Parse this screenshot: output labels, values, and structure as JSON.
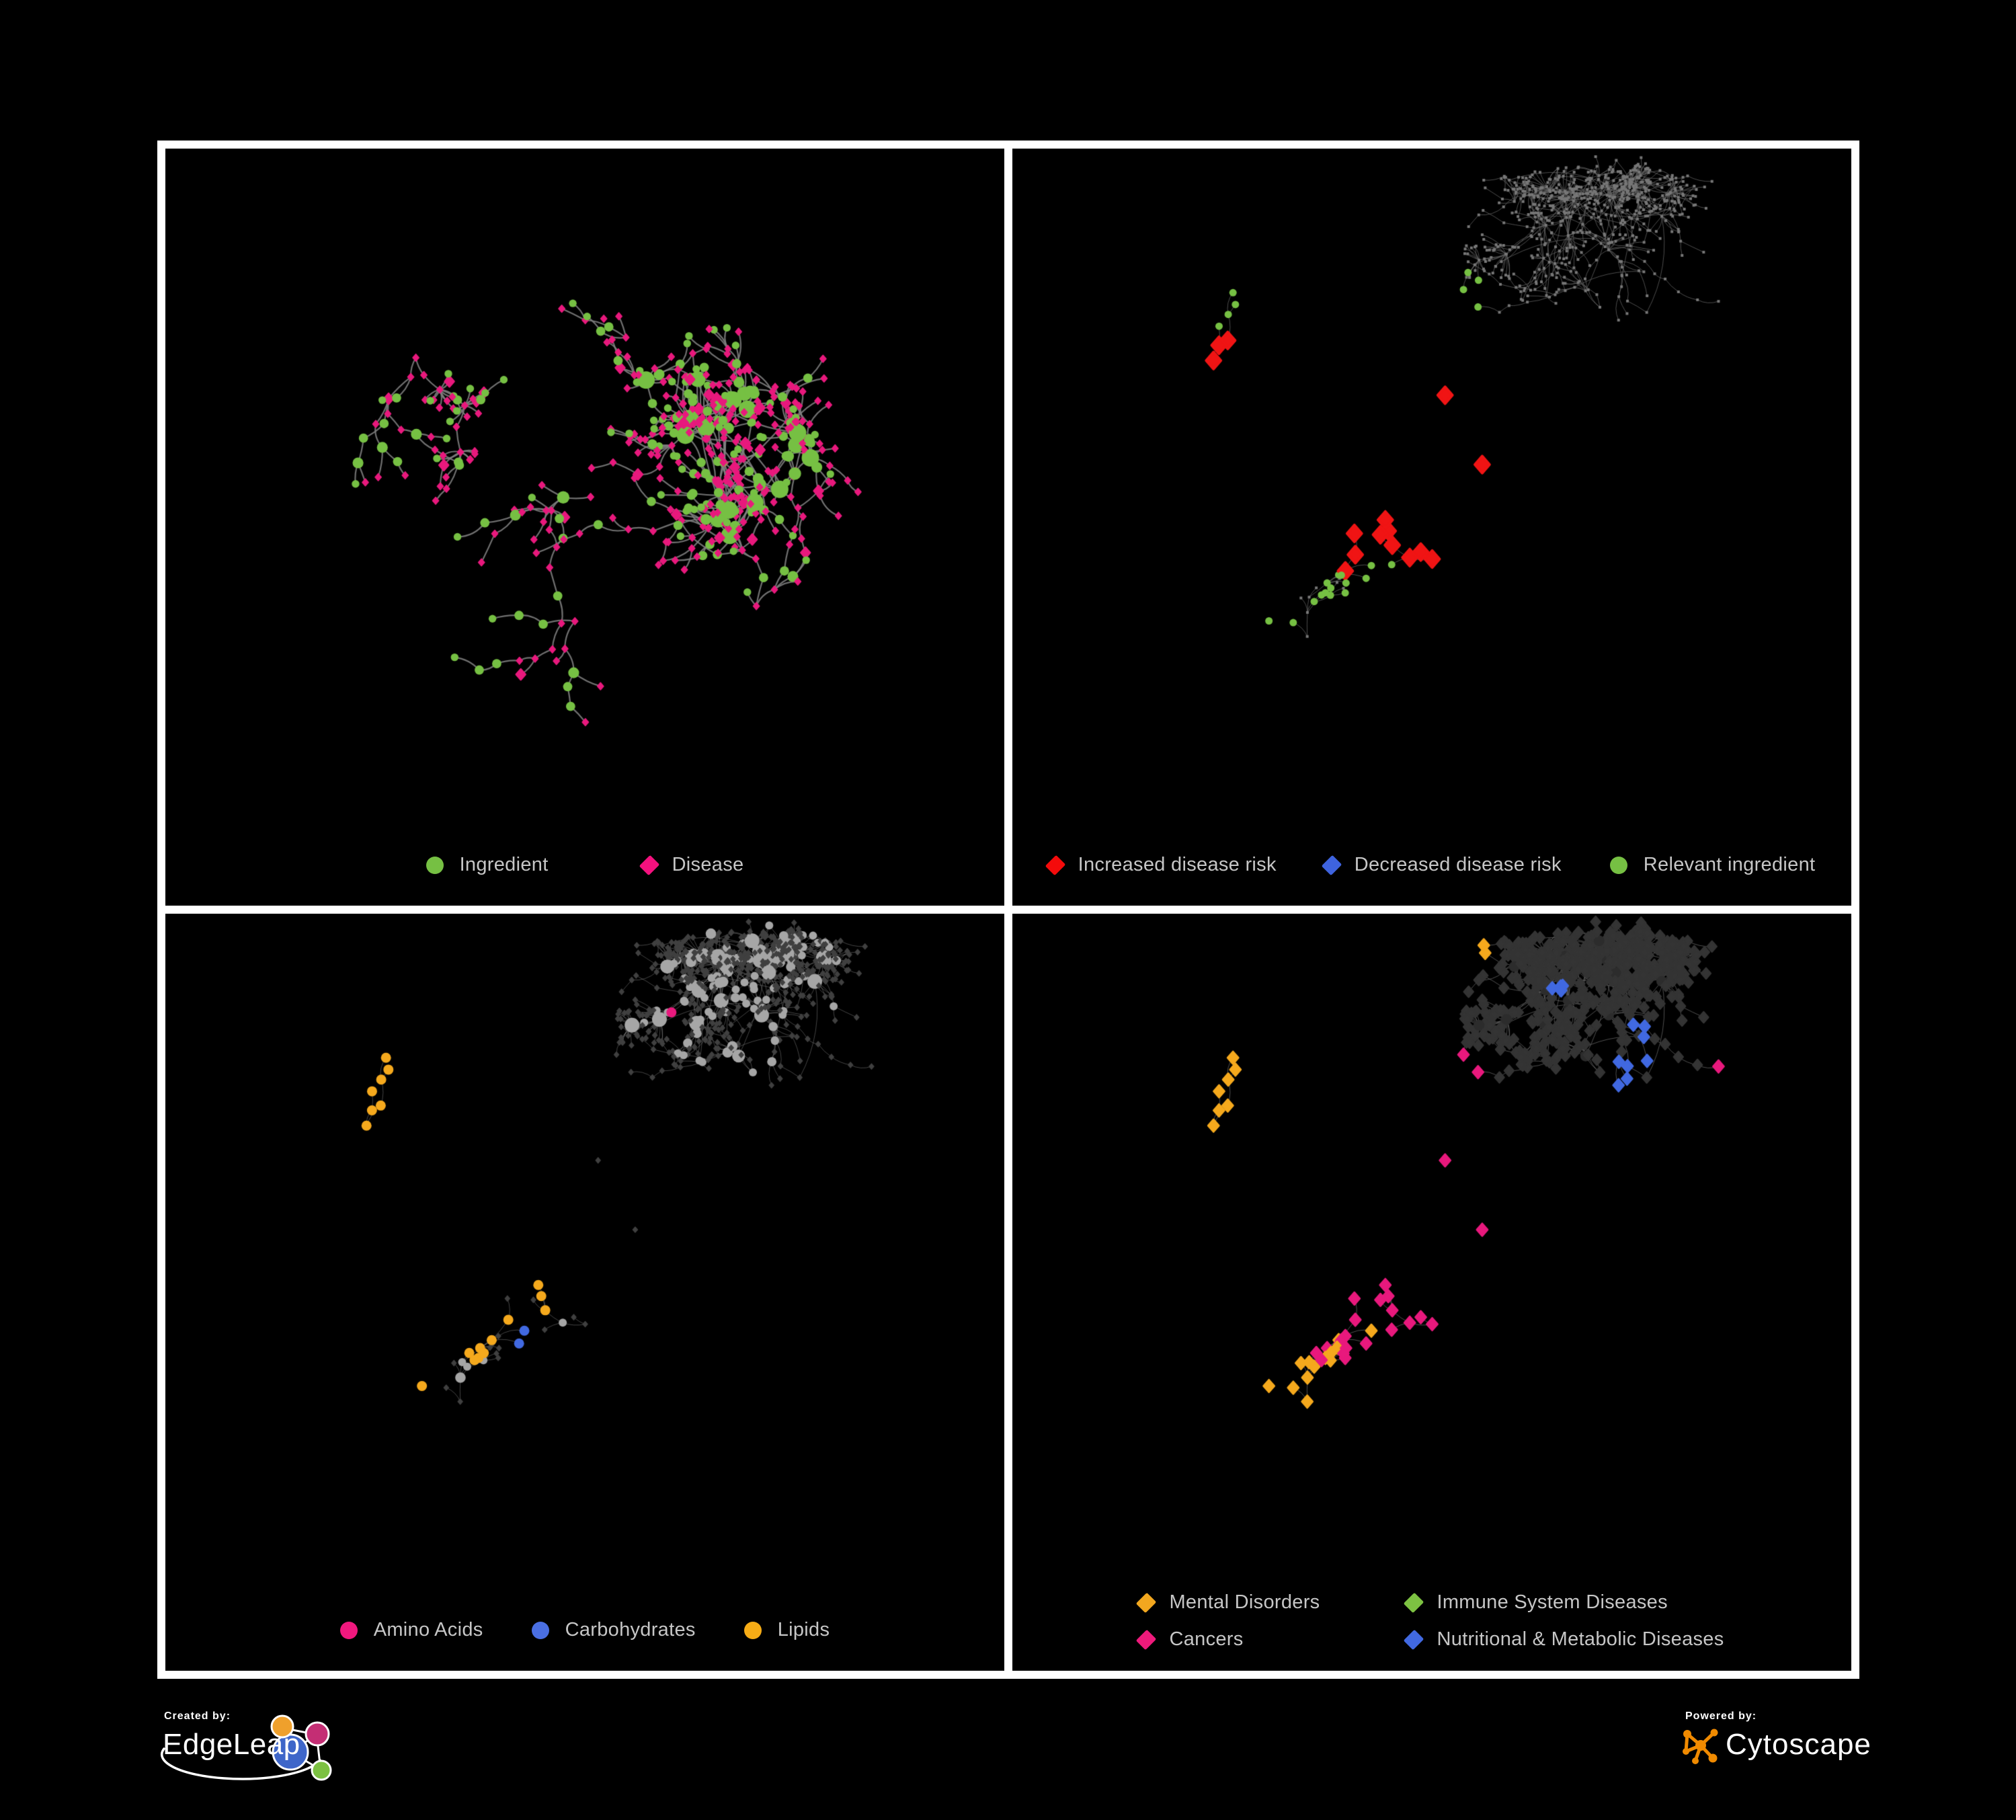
{
  "background": "#000000",
  "panel_border_color": "#ffffff",
  "legend_text_color": "#c6c6c6",
  "panels": [
    {
      "legend": [
        {
          "shape": "circle",
          "color": "#76C043",
          "label": "Ingredient"
        },
        {
          "shape": "diamond",
          "color": "#F4117E",
          "label": "Disease"
        }
      ],
      "network": {
        "seed": 11,
        "nodes": 520,
        "roots": 6,
        "burst": 0.045,
        "burst_leaves": [
          5,
          14
        ],
        "len": [
          20,
          48
        ],
        "extra": 0.06,
        "edge": {
          "color": "#7f7f7f",
          "width": 2.2,
          "alpha": 0.88
        },
        "base": {
          "type": "two-class",
          "green": {
            "color": "#76C043",
            "share": 0.3
          },
          "pink": {
            "color": "#E8197D"
          }
        },
        "highlights": []
      }
    },
    {
      "legend": [
        {
          "shape": "diamond",
          "color": "#F40B0B",
          "label": "Increased disease risk"
        },
        {
          "shape": "diamond",
          "color": "#3E63DE",
          "label": "Decreased disease risk"
        },
        {
          "shape": "circle",
          "color": "#76C043",
          "label": "Relevant ingredient"
        }
      ],
      "network": {
        "seed": 42,
        "nodes": 700,
        "roots": 7,
        "burst": 0.06,
        "burst_leaves": [
          6,
          22
        ],
        "len": [
          16,
          40
        ],
        "extra": 0.07,
        "edge": {
          "color": "#646464",
          "width": 0.9,
          "alpha": 0.85
        },
        "base": {
          "type": "dot",
          "color": "#777777",
          "size": 2.0
        },
        "highlights": [
          {
            "shape": "diamond",
            "color": "#F01414",
            "size": 11,
            "groups": [
              [
                0.38,
                0.2,
                30,
                1
              ],
              [
                0.3,
                0.31,
                60,
                3
              ],
              [
                0.46,
                0.36,
                80,
                6
              ],
              [
                0.6,
                0.4,
                70,
                3
              ],
              [
                0.43,
                0.48,
                70,
                5
              ],
              [
                0.75,
                0.44,
                30,
                1
              ],
              [
                0.73,
                0.62,
                60,
                2
              ],
              [
                0.68,
                0.74,
                60,
                2
              ],
              [
                0.21,
                0.36,
                40,
                2
              ],
              [
                0.52,
                0.62,
                50,
                2
              ]
            ]
          },
          {
            "shape": "diamond",
            "color": "#4169E1",
            "size": 11,
            "groups": [
              [
                0.155,
                0.42,
                70,
                5
              ],
              [
                0.33,
                0.33,
                40,
                2
              ],
              [
                0.88,
                0.27,
                40,
                2
              ]
            ]
          },
          {
            "shape": "diamond",
            "color": "#B0B0B0",
            "size": 11,
            "groups": [
              [
                0.12,
                0.31,
                30,
                1
              ],
              [
                0.3,
                0.42,
                40,
                2
              ],
              [
                0.46,
                0.42,
                30,
                1
              ],
              [
                0.56,
                0.66,
                40,
                2
              ],
              [
                0.7,
                0.7,
                40,
                1
              ],
              [
                0.77,
                0.85,
                30,
                1
              ],
              [
                0.18,
                0.74,
                30,
                1
              ]
            ]
          },
          {
            "shape": "circle",
            "color": "#76C043",
            "size": 5.5,
            "groups": [
              [
                0.35,
                0.44,
                140,
                10
              ],
              [
                0.17,
                0.27,
                80,
                4
              ],
              [
                0.5,
                0.3,
                90,
                4
              ],
              [
                0.62,
                0.55,
                120,
                5
              ],
              [
                0.75,
                0.63,
                30,
                3
              ],
              [
                0.3,
                0.64,
                60,
                2
              ],
              [
                0.55,
                0.85,
                40,
                1
              ],
              [
                0.92,
                0.47,
                30,
                1
              ]
            ]
          }
        ]
      }
    },
    {
      "legend": [
        {
          "shape": "circle",
          "color": "#F0187E",
          "label": "Amino Acids"
        },
        {
          "shape": "circle",
          "color": "#4A6FE3",
          "label": "Carbohydrates"
        },
        {
          "shape": "circle",
          "color": "#F6AC16",
          "label": "Lipids"
        }
      ],
      "network": {
        "seed": 42,
        "nodes": 700,
        "roots": 7,
        "burst": 0.06,
        "burst_leaves": [
          6,
          22
        ],
        "len": [
          16,
          40
        ],
        "extra": 0.07,
        "edge": {
          "color": "#9a9a9a",
          "width": 0.8,
          "alpha": 0.55
        },
        "base": {
          "type": "hub-circles",
          "circle_color": "#A6A6A6",
          "diamond_color": "#404040",
          "circle_r": 6,
          "diamond_s": 3.6
        },
        "highlights": [
          {
            "shape": "circle",
            "color": "#F5A91D",
            "size": 7.5,
            "groups": [
              [
                0.33,
                0.22,
                90,
                22
              ],
              [
                0.27,
                0.47,
                80,
                12
              ],
              [
                0.42,
                0.4,
                60,
                6
              ],
              [
                0.52,
                0.68,
                50,
                6
              ],
              [
                0.7,
                0.72,
                60,
                4
              ],
              [
                0.2,
                0.12,
                60,
                3
              ],
              [
                0.58,
                0.3,
                40,
                2
              ],
              [
                0.14,
                0.82,
                40,
                2
              ],
              [
                0.45,
                0.05,
                40,
                2
              ],
              [
                0.3,
                0.7,
                40,
                2
              ]
            ]
          },
          {
            "shape": "circle",
            "color": "#4169E1",
            "size": 7.5,
            "groups": [
              [
                0.36,
                0.2,
                70,
                6
              ],
              [
                0.3,
                0.42,
                50,
                2
              ],
              [
                0.8,
                0.7,
                40,
                1
              ],
              [
                0.05,
                0.3,
                30,
                1
              ],
              [
                0.42,
                0.55,
                40,
                2
              ]
            ]
          },
          {
            "shape": "circle",
            "color": "#E8197D",
            "size": 7.5,
            "groups": [
              [
                0.4,
                0.02,
                30,
                1
              ],
              [
                0.1,
                0.42,
                40,
                2
              ],
              [
                0.05,
                0.75,
                40,
                2
              ],
              [
                0.35,
                0.78,
                60,
                3
              ],
              [
                0.52,
                0.88,
                50,
                2
              ],
              [
                0.65,
                0.55,
                40,
                2
              ],
              [
                0.9,
                0.35,
                40,
                1
              ],
              [
                0.45,
                0.3,
                30,
                2
              ],
              [
                0.6,
                0.13,
                40,
                1
              ]
            ]
          }
        ]
      }
    },
    {
      "legend": [
        {
          "shape": "diamond",
          "color": "#F2A71F",
          "label": "Mental Disorders"
        },
        {
          "shape": "diamond",
          "color": "#7DC242",
          "label": "Immune System Diseases"
        },
        {
          "shape": "diamond",
          "color": "#EE1A7B",
          "label": "Cancers"
        },
        {
          "shape": "diamond",
          "color": "#4169E1",
          "label": "Nutritional & Metabolic Diseases"
        }
      ],
      "network": {
        "seed": 42,
        "nodes": 700,
        "roots": 7,
        "burst": 0.06,
        "burst_leaves": [
          6,
          22
        ],
        "len": [
          16,
          40
        ],
        "extra": 0.07,
        "edge": {
          "color": "#6a6a6a",
          "width": 1.0,
          "alpha": 0.75
        },
        "base": {
          "type": "diamonds",
          "diamond_color": "#343434",
          "hub_circle_color": "#2c2c2c",
          "diamond_s": 7
        },
        "highlights": [
          {
            "shape": "diamond",
            "color": "#F5A91D",
            "size": 8,
            "groups": [
              [
                0.16,
                0.4,
                150,
                55
              ],
              [
                0.3,
                0.08,
                60,
                4
              ],
              [
                0.1,
                0.7,
                50,
                3
              ],
              [
                0.45,
                0.27,
                40,
                3
              ],
              [
                0.26,
                0.6,
                60,
                4
              ],
              [
                0.65,
                0.85,
                40,
                2
              ],
              [
                0.4,
                0.95,
                30,
                1
              ],
              [
                0.55,
                0.04,
                40,
                2
              ]
            ]
          },
          {
            "shape": "diamond",
            "color": "#E8197D",
            "size": 8,
            "groups": [
              [
                0.44,
                0.5,
                130,
                34
              ],
              [
                0.4,
                0.3,
                60,
                4
              ],
              [
                0.88,
                0.28,
                60,
                5
              ],
              [
                0.25,
                0.88,
                50,
                3
              ],
              [
                0.12,
                0.93,
                30,
                1
              ],
              [
                0.55,
                0.2,
                40,
                2
              ]
            ]
          },
          {
            "shape": "diamond",
            "color": "#4169E1",
            "size": 8,
            "groups": [
              [
                0.58,
                0.62,
                100,
                18
              ],
              [
                0.78,
                0.22,
                90,
                8
              ],
              [
                0.9,
                0.42,
                70,
                5
              ],
              [
                0.65,
                0.1,
                70,
                4
              ],
              [
                0.3,
                0.75,
                70,
                4
              ],
              [
                0.5,
                0.8,
                50,
                2
              ],
              [
                0.1,
                0.55,
                40,
                2
              ],
              [
                0.92,
                0.6,
                40,
                2
              ],
              [
                0.4,
                0.65,
                40,
                2
              ],
              [
                0.22,
                0.3,
                40,
                3
              ],
              [
                0.12,
                0.1,
                40,
                2
              ],
              [
                0.45,
                0.1,
                30,
                1
              ],
              [
                0.85,
                0.8,
                40,
                1
              ]
            ]
          },
          {
            "shape": "diamond",
            "color": "#7DC242",
            "size": 8,
            "groups": [
              [
                0.44,
                0.28,
                30,
                1
              ],
              [
                0.36,
                0.38,
                30,
                1
              ],
              [
                0.56,
                0.55,
                30,
                1
              ],
              [
                0.18,
                0.92,
                30,
                1
              ],
              [
                0.48,
                0.42,
                30,
                1
              ],
              [
                0.3,
                0.52,
                30,
                1
              ],
              [
                0.6,
                0.95,
                30,
                1
              ],
              [
                0.72,
                0.35,
                30,
                1
              ]
            ]
          }
        ]
      }
    }
  ],
  "footer": {
    "created_by": {
      "label": "Created by:",
      "brand": "EdgeLeap",
      "mark_colors": [
        "#EFA02C",
        "#C42E74",
        "#3E66C9",
        "#7CC142"
      ],
      "mark_line_color": "#ffffff"
    },
    "powered_by": {
      "label": "Powered by:",
      "brand": "Cytoscape",
      "color": "#F08A00",
      "text_color": "#ffffff"
    }
  }
}
